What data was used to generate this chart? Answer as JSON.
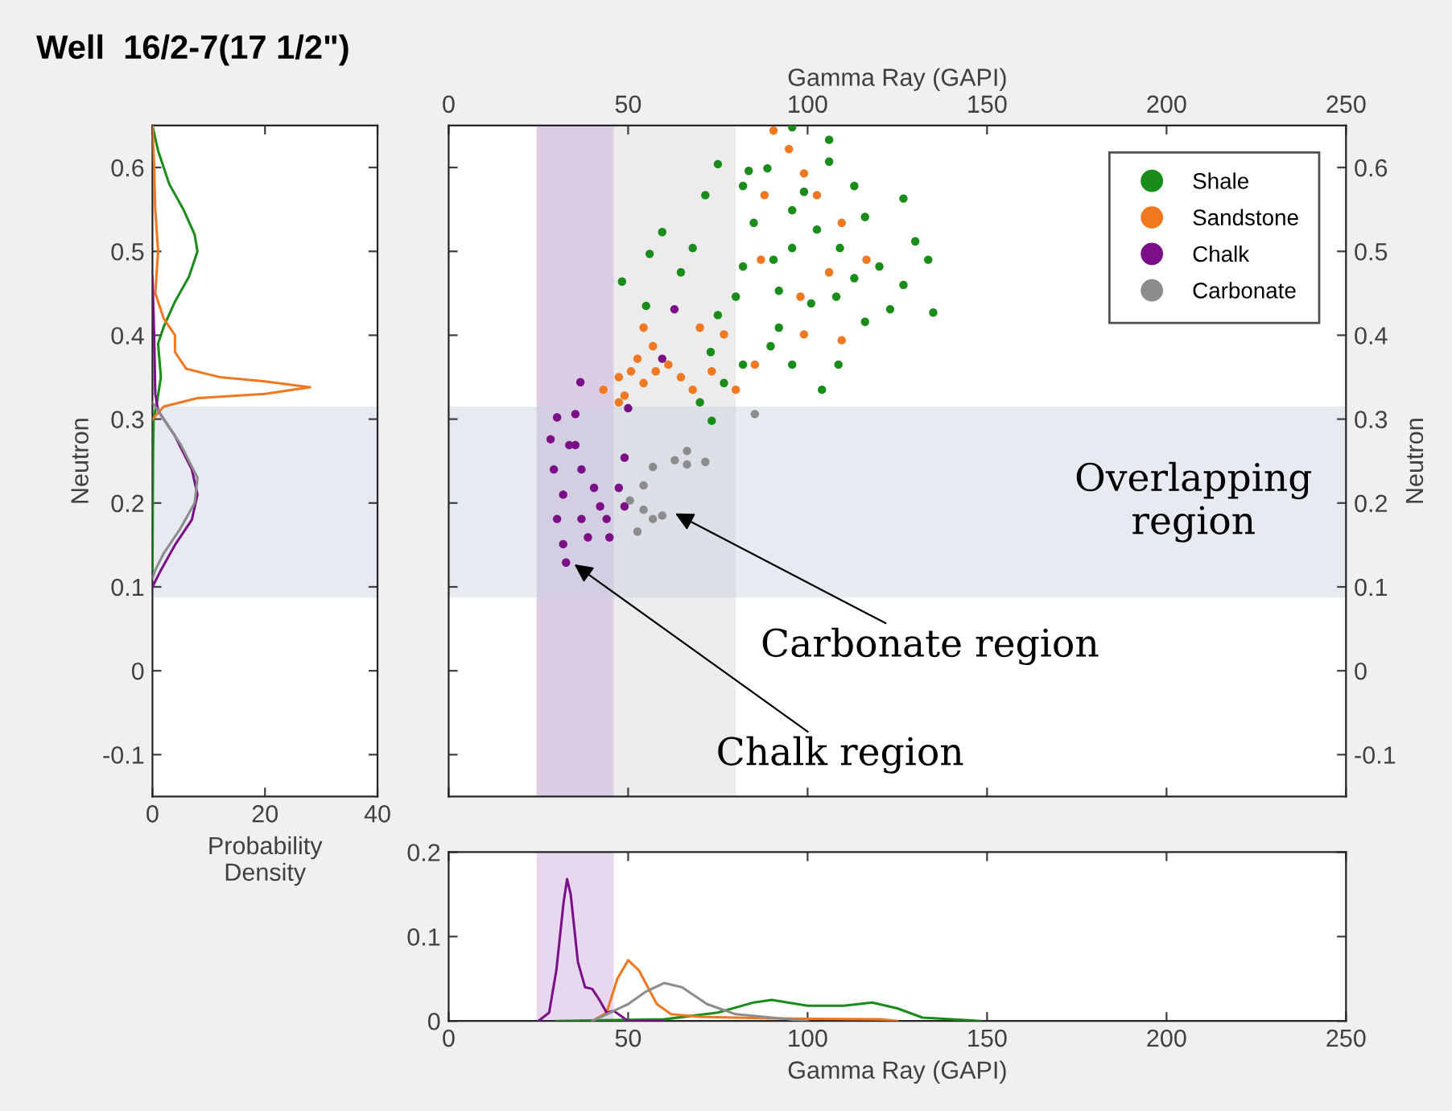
{
  "chart_data": [
    {
      "type": "line",
      "title": "Well  16/2-7(17 1/2\")",
      "xlabel": "Probability\nDensity",
      "ylabel": "Neutron",
      "xlim": [
        0,
        40
      ],
      "xticks": [
        0,
        20,
        40
      ],
      "ylim": [
        -0.15,
        0.65
      ],
      "yticks": [
        -0.1,
        0,
        0.1,
        0.2,
        0.3,
        0.4,
        0.5,
        0.6
      ],
      "grid": false,
      "legend": false,
      "marker": "none",
      "line_style": "solid",
      "bands": [
        {
          "axis": "y",
          "from": 0.087,
          "to": 0.315,
          "color": "#c9d0e0"
        }
      ],
      "series": [
        {
          "color": "#1a8c1a",
          "x": [
            0,
            1,
            3,
            5.5,
            7.5,
            8,
            6.5,
            4,
            2,
            1,
            1.5,
            0.8,
            0.2,
            0.1,
            0
          ],
          "values": [
            0.65,
            0.62,
            0.58,
            0.55,
            0.52,
            0.5,
            0.47,
            0.44,
            0.41,
            0.39,
            0.35,
            0.32,
            0.3,
            0.25,
            0.12
          ]
        },
        {
          "color": "#f07820",
          "x": [
            0,
            0.3,
            0.5,
            1,
            0.5,
            2,
            4,
            4,
            6,
            12,
            20,
            28,
            20,
            8,
            2,
            0
          ],
          "values": [
            0.65,
            0.6,
            0.55,
            0.5,
            0.45,
            0.42,
            0.4,
            0.38,
            0.36,
            0.35,
            0.345,
            0.338,
            0.33,
            0.325,
            0.315,
            0.3
          ]
        },
        {
          "color": "#7a0f87",
          "x": [
            0,
            0.3,
            0.5,
            1,
            4,
            7,
            8,
            7,
            4,
            1.5,
            0
          ],
          "values": [
            0.47,
            0.4,
            0.33,
            0.31,
            0.28,
            0.24,
            0.21,
            0.18,
            0.15,
            0.12,
            0.1
          ]
        },
        {
          "color": "#8c8c8c",
          "x": [
            0,
            2,
            5,
            8,
            7.5,
            5,
            2,
            0.5,
            0
          ],
          "values": [
            0.32,
            0.3,
            0.27,
            0.23,
            0.2,
            0.17,
            0.14,
            0.12,
            0.11
          ]
        }
      ]
    },
    {
      "type": "scatter",
      "xlabel": "Gamma Ray (GAPI)",
      "ylabel": "Neutron",
      "xlim": [
        0,
        250
      ],
      "xticks": [
        0,
        50,
        100,
        150,
        200,
        250
      ],
      "ylim": [
        -0.15,
        0.65
      ],
      "yticks": [
        -0.1,
        0,
        0.1,
        0.2,
        0.3,
        0.4,
        0.5,
        0.6
      ],
      "grid": false,
      "legend": "top right",
      "marker": "circle",
      "bands": [
        {
          "axis": "x",
          "from": 24.5,
          "to": 80,
          "color": "#d4d4d4"
        },
        {
          "axis": "x",
          "from": 24.5,
          "to": 46,
          "color": "#c9a8dc"
        },
        {
          "axis": "y",
          "from": 0.087,
          "to": 0.315,
          "color": "#c9d0e0",
          "label": "Overlapping\nregion"
        }
      ],
      "annotations": [
        {
          "text": "Carbonate region",
          "x": 62,
          "y": 0.19
        },
        {
          "text": "Chalk region",
          "x": 34,
          "y": 0.13
        }
      ],
      "series": [
        {
          "name": "Shale",
          "color": "#1a8c1a",
          "x": [
            95.7,
            106,
            75,
            71.5,
            59.5,
            56,
            48.3,
            55,
            64.7,
            68,
            75,
            73,
            76.7,
            73.3,
            70,
            82,
            89.7,
            95.7,
            108.6,
            104,
            82,
            85,
            90.5,
            82,
            80,
            99,
            102.6,
            95.7,
            92,
            101,
            113,
            116,
            120,
            123,
            126.7,
            130,
            133.6,
            135,
            109,
            108,
            116,
            126.7,
            106,
            88.8,
            83.6,
            95.7,
            113,
            92
          ],
          "values": [
            0.648,
            0.633,
            0.604,
            0.567,
            0.523,
            0.497,
            0.464,
            0.435,
            0.475,
            0.504,
            0.424,
            0.38,
            0.343,
            0.298,
            0.32,
            0.365,
            0.387,
            0.365,
            0.365,
            0.335,
            0.578,
            0.534,
            0.49,
            0.482,
            0.446,
            0.571,
            0.526,
            0.504,
            0.453,
            0.438,
            0.578,
            0.541,
            0.482,
            0.431,
            0.563,
            0.512,
            0.49,
            0.427,
            0.504,
            0.446,
            0.416,
            0.46,
            0.607,
            0.599,
            0.596,
            0.549,
            0.468,
            0.409
          ]
        },
        {
          "name": "Sandstone",
          "color": "#f07820",
          "x": [
            90.5,
            94.8,
            99,
            102.6,
            88,
            109.5,
            116.4,
            106,
            87,
            98,
            109.5,
            99,
            85.3,
            76.7,
            70,
            54.3,
            56.9,
            52.6,
            61.2,
            47.4,
            43.1,
            49,
            54.3,
            64.7,
            68,
            73.3,
            80,
            47.4,
            57.7,
            50.8
          ],
          "values": [
            0.644,
            0.622,
            0.593,
            0.567,
            0.567,
            0.534,
            0.49,
            0.475,
            0.49,
            0.446,
            0.394,
            0.401,
            0.365,
            0.401,
            0.409,
            0.409,
            0.387,
            0.372,
            0.365,
            0.35,
            0.335,
            0.328,
            0.343,
            0.35,
            0.335,
            0.357,
            0.335,
            0.32,
            0.357,
            0.357
          ]
        },
        {
          "name": "Chalk",
          "color": "#7a0f87",
          "x": [
            36.7,
            50,
            30.2,
            35.3,
            28.4,
            33.6,
            29.3,
            37,
            31.9,
            40.5,
            47.4,
            49,
            30.2,
            37,
            44,
            49,
            31.9,
            38.8,
            32.7,
            44.8,
            62.9,
            59.5,
            35.3,
            42.2
          ],
          "values": [
            0.344,
            0.313,
            0.302,
            0.306,
            0.276,
            0.269,
            0.24,
            0.24,
            0.21,
            0.218,
            0.218,
            0.254,
            0.181,
            0.181,
            0.181,
            0.196,
            0.151,
            0.159,
            0.129,
            0.159,
            0.431,
            0.372,
            0.269,
            0.196
          ]
        },
        {
          "name": "Carbonate",
          "color": "#8c8c8c",
          "x": [
            85.3,
            66.4,
            63,
            56.9,
            71.5,
            54.3,
            50.5,
            54.3,
            56.9,
            52.6,
            59.5,
            66.4
          ],
          "values": [
            0.306,
            0.262,
            0.251,
            0.243,
            0.249,
            0.221,
            0.203,
            0.192,
            0.181,
            0.166,
            0.185,
            0.246
          ]
        }
      ]
    },
    {
      "type": "line",
      "xlabel": "Gamma Ray (GAPI)",
      "xlim": [
        0,
        250
      ],
      "xticks": [
        0,
        50,
        100,
        150,
        200,
        250
      ],
      "ylim": [
        0,
        0.2
      ],
      "yticks": [
        0,
        0.1,
        0.2
      ],
      "grid": false,
      "legend": false,
      "marker": "none",
      "line_style": "solid",
      "bands": [
        {
          "axis": "x",
          "from": 24.5,
          "to": 46,
          "color": "#c9a8dc"
        }
      ],
      "series": [
        {
          "color": "#1a8c1a",
          "x": [
            30,
            60,
            75,
            85,
            90,
            100,
            110,
            118,
            125,
            132,
            145,
            148
          ],
          "values": [
            0,
            0.002,
            0.01,
            0.022,
            0.025,
            0.018,
            0.018,
            0.022,
            0.015,
            0.004,
            0.001,
            0
          ]
        },
        {
          "color": "#f07820",
          "x": [
            40,
            44,
            47,
            50,
            53,
            58,
            62,
            70,
            90,
            120,
            125
          ],
          "values": [
            0,
            0.01,
            0.05,
            0.072,
            0.06,
            0.02,
            0.008,
            0.005,
            0.003,
            0.002,
            0
          ]
        },
        {
          "color": "#7a0f87",
          "x": [
            25,
            28,
            30,
            32,
            33,
            34,
            36,
            38,
            40,
            42,
            44,
            46,
            50,
            60
          ],
          "values": [
            0,
            0.01,
            0.06,
            0.14,
            0.168,
            0.15,
            0.07,
            0.04,
            0.038,
            0.025,
            0.01,
            0.012,
            0,
            0
          ]
        },
        {
          "color": "#8c8c8c",
          "x": [
            40,
            50,
            55,
            60,
            65,
            72,
            80,
            90,
            100
          ],
          "values": [
            0,
            0.02,
            0.035,
            0.045,
            0.04,
            0.02,
            0.008,
            0.004,
            0
          ]
        }
      ]
    }
  ]
}
